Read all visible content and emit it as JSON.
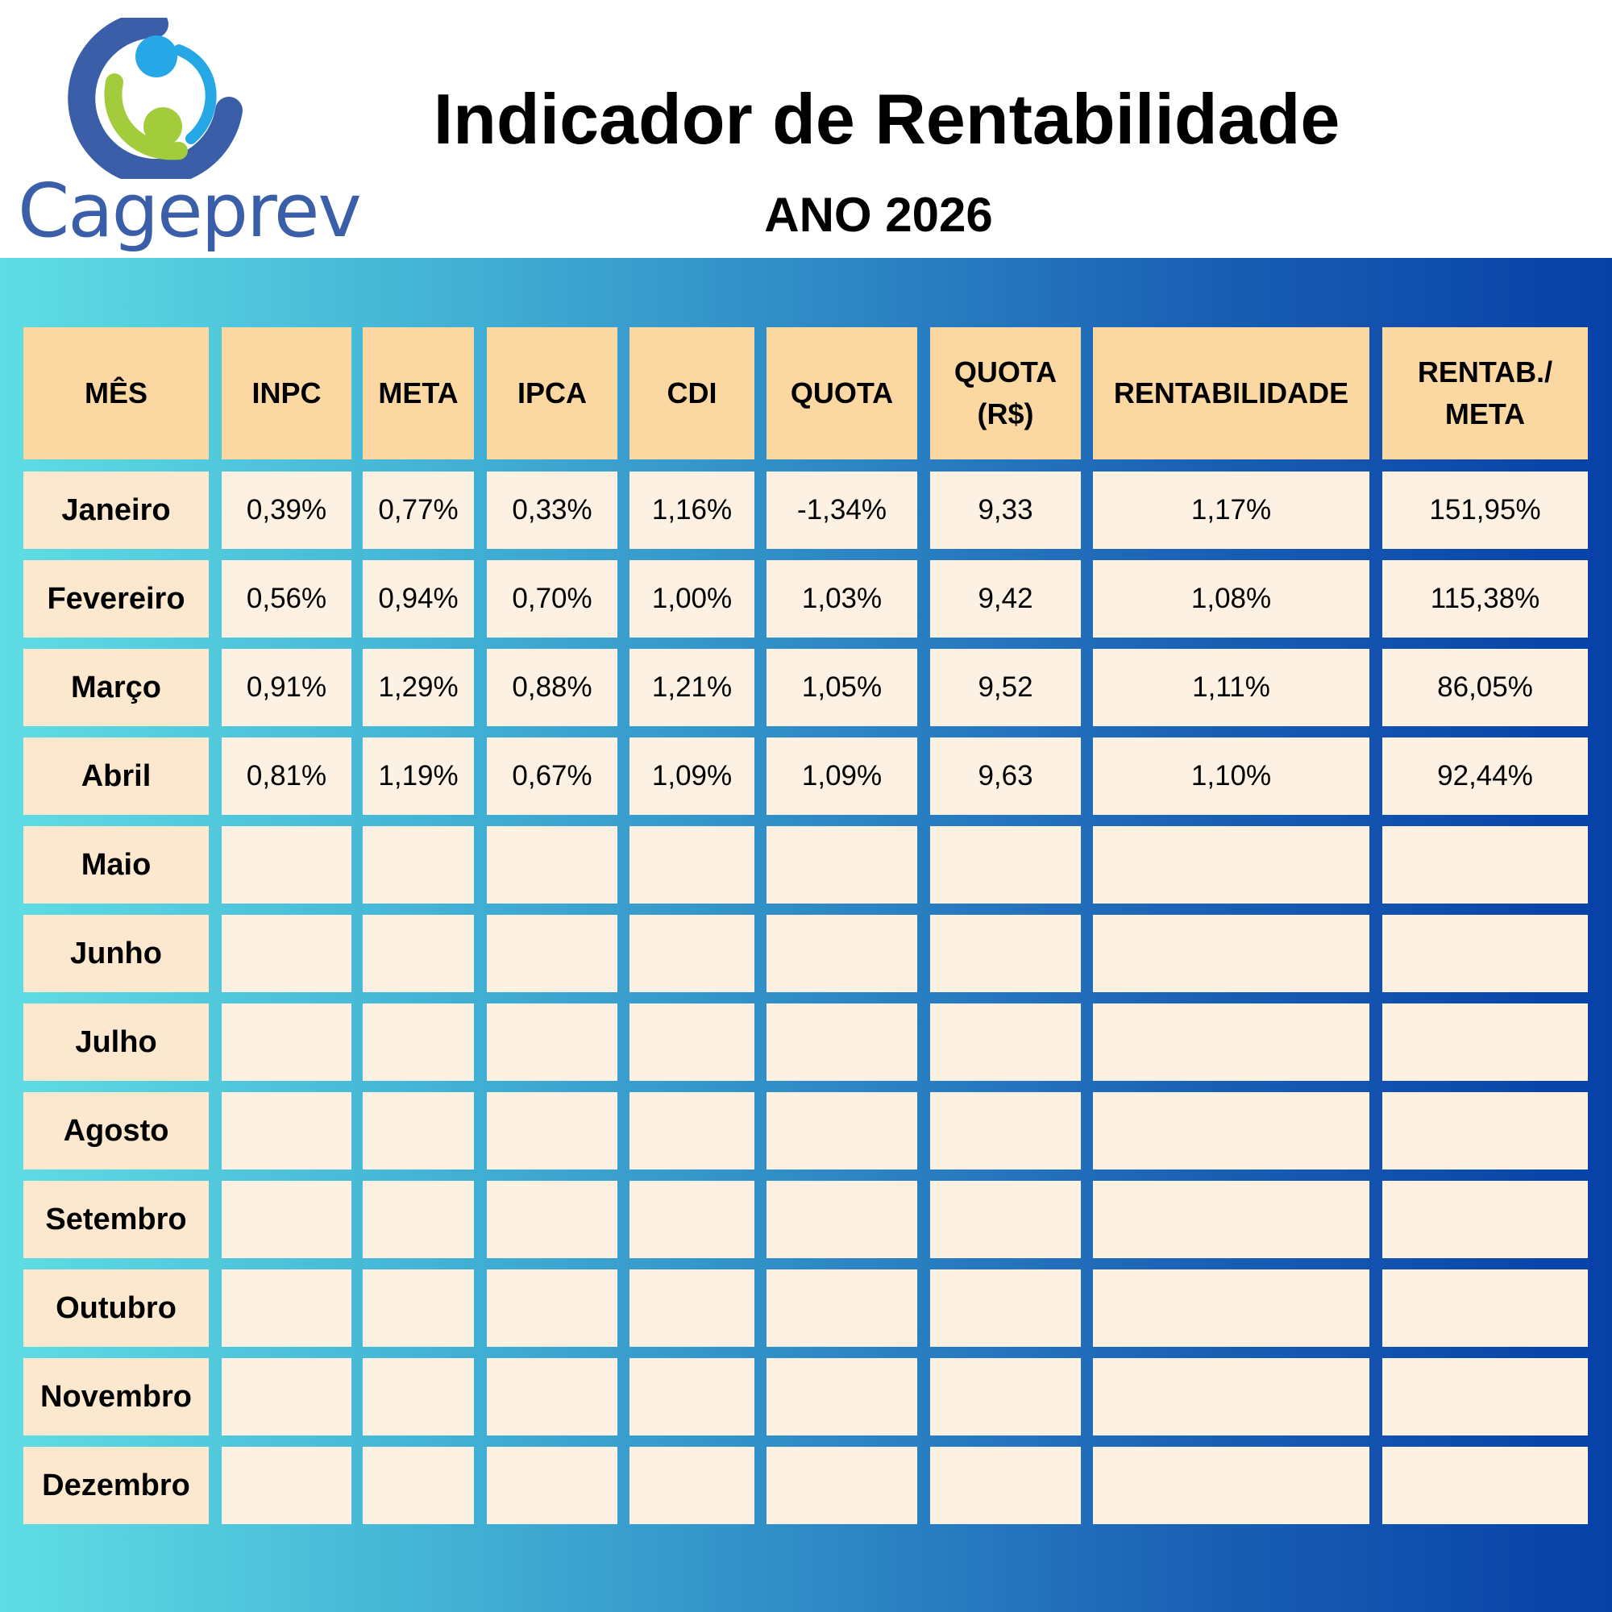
{
  "header": {
    "logo_text": "Cageprev",
    "title": "Indicador de Rentabilidade",
    "subtitle": "ANO 2026"
  },
  "colors": {
    "header_cell": "#fbd7a1",
    "month_cell": "#fce8cf",
    "value_cell": "#fcf1e2",
    "gradient_start": "#5fdde4",
    "gradient_end": "#0741a7",
    "logo_blue": "#3a5fa8",
    "logo_green": "#a3cc3c"
  },
  "table": {
    "headers": [
      "MÊS",
      "INPC",
      "META",
      "IPCA",
      "CDI",
      "QUOTA",
      "QUOTA (R$)",
      "RENTABILIDADE",
      "RENTAB./ META"
    ],
    "rows": [
      [
        "Janeiro",
        "0,39%",
        "0,77%",
        "0,33%",
        "1,16%",
        "-1,34%",
        "9,33",
        "1,17%",
        "151,95%"
      ],
      [
        "Fevereiro",
        "0,56%",
        "0,94%",
        "0,70%",
        "1,00%",
        "1,03%",
        "9,42",
        "1,08%",
        "115,38%"
      ],
      [
        "Março",
        "0,91%",
        "1,29%",
        "0,88%",
        "1,21%",
        "1,05%",
        "9,52",
        "1,11%",
        "86,05%"
      ],
      [
        "Abril",
        "0,81%",
        "1,19%",
        "0,67%",
        "1,09%",
        "1,09%",
        "9,63",
        "1,10%",
        "92,44%"
      ],
      [
        "Maio",
        "",
        "",
        "",
        "",
        "",
        "",
        "",
        ""
      ],
      [
        "Junho",
        "",
        "",
        "",
        "",
        "",
        "",
        "",
        ""
      ],
      [
        "Julho",
        "",
        "",
        "",
        "",
        "",
        "",
        "",
        ""
      ],
      [
        "Agosto",
        "",
        "",
        "",
        "",
        "",
        "",
        "",
        ""
      ],
      [
        "Setembro",
        "",
        "",
        "",
        "",
        "",
        "",
        "",
        ""
      ],
      [
        "Outubro",
        "",
        "",
        "",
        "",
        "",
        "",
        "",
        ""
      ],
      [
        "Novembro",
        "",
        "",
        "",
        "",
        "",
        "",
        "",
        ""
      ],
      [
        "Dezembro",
        "",
        "",
        "",
        "",
        "",
        "",
        "",
        ""
      ]
    ]
  }
}
